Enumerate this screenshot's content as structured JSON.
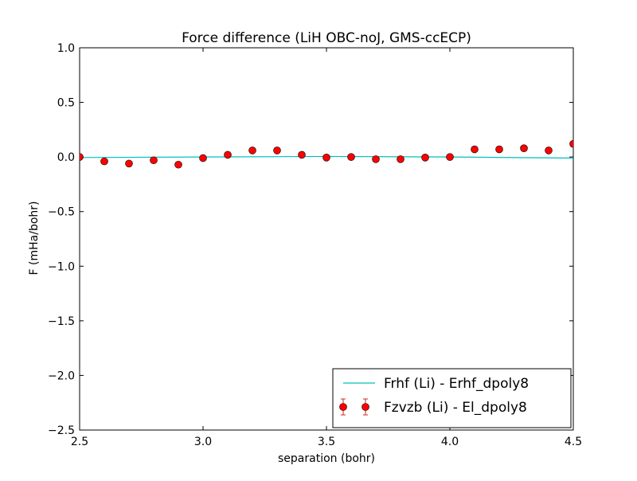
{
  "chart_data": {
    "type": "scatter",
    "title": "Force difference (LiH OBC-noJ, GMS-ccECP)",
    "xlabel": "separation (bohr)",
    "ylabel": "F (mHa/bohr)",
    "xlim": [
      2.5,
      4.5
    ],
    "ylim": [
      -2.5,
      1.0
    ],
    "xticks": [
      2.5,
      3.0,
      3.5,
      4.0,
      4.5
    ],
    "xtick_labels": [
      "2.5",
      "3.0",
      "3.5",
      "4.0",
      "4.5"
    ],
    "yticks": [
      -2.5,
      -2.0,
      -1.5,
      -1.0,
      -0.5,
      0.0,
      0.5,
      1.0
    ],
    "ytick_labels": [
      "−2.5",
      "−2.0",
      "−1.5",
      "−1.0",
      "−0.5",
      "0.0",
      "0.5",
      "1.0"
    ],
    "grid": false,
    "legend_position": "lower-right",
    "series": [
      {
        "name": "Frhf (Li)  - Erhf_dpoly8",
        "kind": "line",
        "color": "#00bfbf",
        "x": [
          2.5,
          3.0,
          3.5,
          4.0,
          4.5
        ],
        "y": [
          -0.005,
          0.0,
          0.005,
          0.0,
          -0.01
        ]
      },
      {
        "name": "Fzvzb (Li)  - El_dpoly8",
        "kind": "points-errorbar",
        "color": "#ff0000",
        "x": [
          2.5,
          2.6,
          2.7,
          2.8,
          2.9,
          3.0,
          3.1,
          3.2,
          3.3,
          3.4,
          3.5,
          3.6,
          3.7,
          3.8,
          3.9,
          4.0,
          4.1,
          4.2,
          4.3,
          4.4,
          4.5
        ],
        "y": [
          0.0,
          -0.04,
          -0.06,
          -0.03,
          -0.07,
          -0.01,
          0.02,
          0.06,
          0.06,
          0.02,
          -0.005,
          0.0,
          -0.02,
          -0.02,
          -0.005,
          0.0,
          0.07,
          0.07,
          0.08,
          0.06,
          0.12
        ]
      }
    ]
  }
}
